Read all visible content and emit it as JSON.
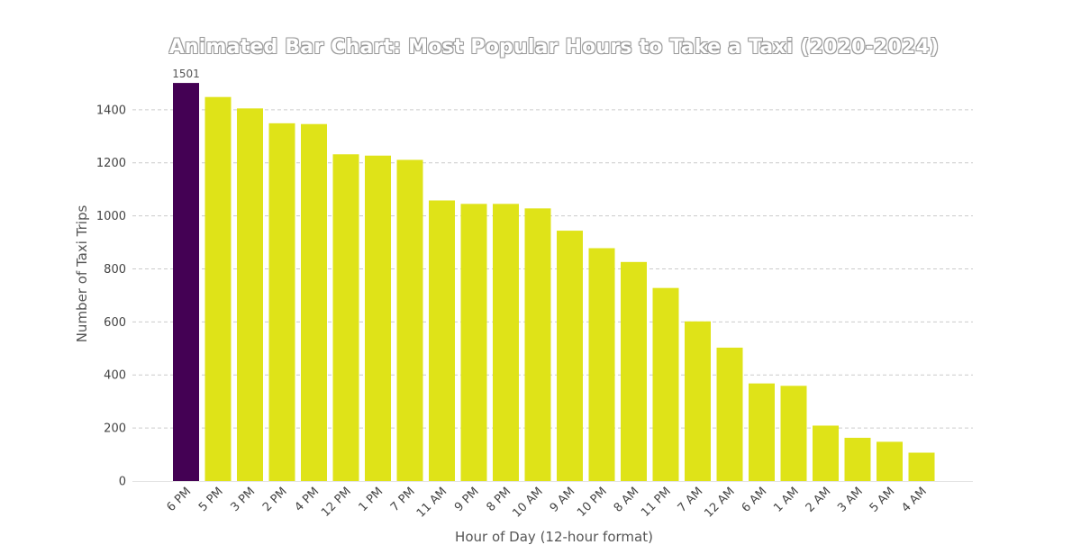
{
  "chart": {
    "title": "Animated Bar Chart: Most Popular Hours to Take a Taxi (2020-2024)",
    "xlabel": "Hour of Day (12-hour format)",
    "ylabel": "Number of Taxi Trips"
  },
  "colors": {
    "highlight_bar": "#440154",
    "bar": "#dfe318",
    "grid": "#cccccc",
    "tick_text": "#444444"
  },
  "chart_data": {
    "type": "bar",
    "title": "Animated Bar Chart: Most Popular Hours to Take a Taxi (2020-2024)",
    "xlabel": "Hour of Day (12-hour format)",
    "ylabel": "Number of Taxi Trips",
    "categories": [
      "6 PM",
      "5 PM",
      "3 PM",
      "2 PM",
      "4 PM",
      "12 PM",
      "1 PM",
      "7 PM",
      "11 AM",
      "9 PM",
      "8 PM",
      "10 AM",
      "9 AM",
      "10 PM",
      "8 AM",
      "11 PM",
      "7 AM",
      "12 AM",
      "6 AM",
      "1 AM",
      "2 AM",
      "3 AM",
      "5 AM",
      "4 AM"
    ],
    "values": [
      1501,
      1448,
      1405,
      1349,
      1346,
      1232,
      1227,
      1211,
      1058,
      1045,
      1045,
      1028,
      944,
      878,
      826,
      728,
      602,
      503,
      368,
      359,
      209,
      163,
      148,
      107
    ],
    "highlighted_category": "6 PM",
    "data_labels": [
      {
        "category": "6 PM",
        "text": "1501"
      }
    ],
    "yticks": [
      0,
      200,
      400,
      600,
      800,
      1000,
      1200,
      1400
    ],
    "ylim": [
      0,
      1576
    ],
    "grid": "horizontal dashed",
    "legend": "none"
  }
}
